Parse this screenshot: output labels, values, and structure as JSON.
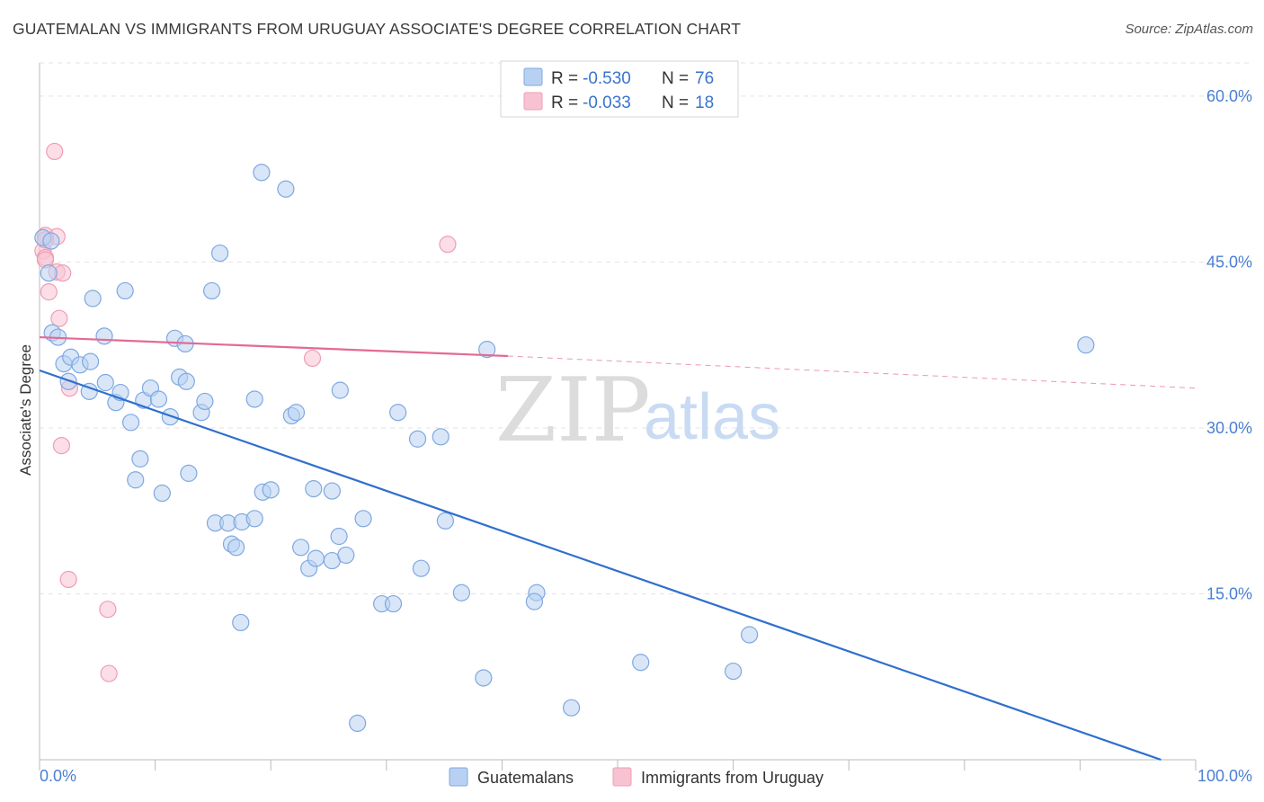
{
  "header": {
    "title": "GUATEMALAN VS IMMIGRANTS FROM URUGUAY ASSOCIATE'S DEGREE CORRELATION CHART",
    "source": "Source: ZipAtlas.com"
  },
  "watermark": {
    "zip": "ZIP",
    "atlas": "atlas"
  },
  "legend_box": {
    "rows": [
      {
        "r_label": "R =",
        "r_value": "-0.530",
        "n_label": "N =",
        "n_value": "76"
      },
      {
        "r_label": "R =",
        "r_value": "-0.033",
        "n_label": "N =",
        "n_value": "18"
      }
    ]
  },
  "bottom_legend": {
    "items": [
      {
        "label": "Guatemalans"
      },
      {
        "label": "Immigrants from Uruguay"
      }
    ]
  },
  "colors": {
    "blue_fill": "#b8d1f3",
    "blue_stroke": "#7fa8e0",
    "blue_line": "#2f6fce",
    "pink_fill": "#f7c3d2",
    "pink_stroke": "#ef9db6",
    "pink_line": "#e36a93",
    "tick_text": "#4a7fd4",
    "grid": "#e3e3e3"
  },
  "chart_data": {
    "type": "scatter",
    "title": "GUATEMALAN VS IMMIGRANTS FROM URUGUAY ASSOCIATE'S DEGREE CORRELATION CHART",
    "xlabel": "",
    "ylabel": "Associate's Degree",
    "xlim": [
      0,
      100
    ],
    "ylim": [
      0,
      63
    ],
    "x_tick_labels": [
      "0.0%",
      "100.0%"
    ],
    "y_ticks": [
      15,
      30,
      45,
      60
    ],
    "y_tick_labels": [
      "15.0%",
      "30.0%",
      "45.0%",
      "60.0%"
    ],
    "grid": true,
    "legend_position": "top-center",
    "series": [
      {
        "name": "Guatemalans",
        "R": -0.53,
        "N": 76,
        "trend": {
          "x": [
            0,
            97
          ],
          "y": [
            35.2,
            0
          ]
        },
        "points": [
          [
            0.3,
            47.2
          ],
          [
            1.0,
            46.9
          ],
          [
            0.8,
            44.0
          ],
          [
            1.1,
            38.6
          ],
          [
            1.6,
            38.2
          ],
          [
            2.1,
            35.8
          ],
          [
            2.7,
            36.4
          ],
          [
            2.5,
            34.2
          ],
          [
            3.5,
            35.7
          ],
          [
            4.4,
            36.0
          ],
          [
            4.3,
            33.3
          ],
          [
            5.6,
            38.3
          ],
          [
            4.6,
            41.7
          ],
          [
            7.4,
            42.4
          ],
          [
            5.7,
            34.1
          ],
          [
            6.6,
            32.3
          ],
          [
            7.0,
            33.2
          ],
          [
            7.9,
            30.5
          ],
          [
            9.0,
            32.5
          ],
          [
            9.6,
            33.6
          ],
          [
            10.3,
            32.6
          ],
          [
            11.3,
            31.0
          ],
          [
            11.7,
            38.1
          ],
          [
            12.6,
            37.6
          ],
          [
            12.1,
            34.6
          ],
          [
            12.7,
            34.2
          ],
          [
            14.0,
            31.4
          ],
          [
            14.3,
            32.4
          ],
          [
            8.7,
            27.2
          ],
          [
            8.3,
            25.3
          ],
          [
            10.6,
            24.1
          ],
          [
            12.9,
            25.9
          ],
          [
            14.9,
            42.4
          ],
          [
            15.6,
            45.8
          ],
          [
            19.2,
            53.1
          ],
          [
            21.3,
            51.6
          ],
          [
            18.6,
            32.6
          ],
          [
            21.8,
            31.1
          ],
          [
            22.2,
            31.4
          ],
          [
            26.0,
            33.4
          ],
          [
            19.3,
            24.2
          ],
          [
            20.0,
            24.4
          ],
          [
            23.7,
            24.5
          ],
          [
            25.3,
            24.3
          ],
          [
            15.2,
            21.4
          ],
          [
            16.3,
            21.4
          ],
          [
            17.5,
            21.5
          ],
          [
            18.6,
            21.8
          ],
          [
            16.6,
            19.5
          ],
          [
            17.0,
            19.2
          ],
          [
            22.6,
            19.2
          ],
          [
            23.3,
            17.3
          ],
          [
            23.9,
            18.2
          ],
          [
            25.3,
            18.0
          ],
          [
            25.9,
            20.2
          ],
          [
            26.5,
            18.5
          ],
          [
            28.0,
            21.8
          ],
          [
            17.4,
            12.4
          ],
          [
            31.0,
            31.4
          ],
          [
            32.7,
            29.0
          ],
          [
            34.7,
            29.2
          ],
          [
            35.1,
            21.6
          ],
          [
            33.0,
            17.3
          ],
          [
            29.6,
            14.1
          ],
          [
            30.6,
            14.1
          ],
          [
            36.5,
            15.1
          ],
          [
            43.0,
            15.1
          ],
          [
            42.8,
            14.3
          ],
          [
            38.7,
            37.1
          ],
          [
            38.4,
            7.4
          ],
          [
            27.5,
            3.3
          ],
          [
            46.0,
            4.7
          ],
          [
            52.0,
            8.8
          ],
          [
            60.0,
            8.0
          ],
          [
            61.4,
            11.3
          ],
          [
            90.5,
            37.5
          ]
        ]
      },
      {
        "name": "Immigrants from Uruguay",
        "R": -0.033,
        "N": 18,
        "trend": {
          "x": [
            0,
            40.5
          ],
          "y": [
            38.2,
            36.5
          ]
        },
        "trend_extrapolated": {
          "x": [
            40.5,
            100
          ],
          "y": [
            36.5,
            33.6
          ]
        },
        "points": [
          [
            1.3,
            55.0
          ],
          [
            0.5,
            47.4
          ],
          [
            1.5,
            47.3
          ],
          [
            0.3,
            46.0
          ],
          [
            0.5,
            45.4
          ],
          [
            0.5,
            45.2
          ],
          [
            1.5,
            44.1
          ],
          [
            2.0,
            44.0
          ],
          [
            0.8,
            42.3
          ],
          [
            1.7,
            39.9
          ],
          [
            2.6,
            33.6
          ],
          [
            1.9,
            28.4
          ],
          [
            2.5,
            16.3
          ],
          [
            5.9,
            13.6
          ],
          [
            6.0,
            7.8
          ],
          [
            23.6,
            36.3
          ],
          [
            35.3,
            46.6
          ],
          [
            0.5,
            47.0
          ]
        ]
      }
    ]
  }
}
